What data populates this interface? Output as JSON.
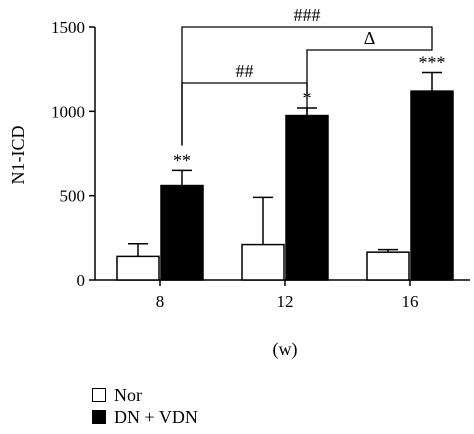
{
  "chart_data": {
    "type": "bar",
    "categories": [
      "8",
      "12",
      "16"
    ],
    "xlabel": "(w)",
    "ylabel": "N1-ICD",
    "ylim": [
      0,
      1500
    ],
    "yticks": [
      0,
      500,
      1000,
      1500
    ],
    "grid": false,
    "legend_position": "bottom-left",
    "series": [
      {
        "name": "Nor",
        "color": "#ffffff",
        "values": [
          140,
          210,
          165
        ],
        "errors": [
          75,
          280,
          15
        ]
      },
      {
        "name": "DN + VDN",
        "color": "#000000",
        "values": [
          560,
          975,
          1120
        ],
        "errors": [
          90,
          45,
          110
        ]
      }
    ],
    "significance": {
      "bar_labels": [
        "**",
        "*",
        "***"
      ],
      "brackets": [
        {
          "from": "8",
          "to": "16",
          "label": "###"
        },
        {
          "from": "8",
          "to": "12",
          "label": "##"
        },
        {
          "from": "12",
          "to": "16",
          "label": "Δ"
        }
      ]
    }
  }
}
